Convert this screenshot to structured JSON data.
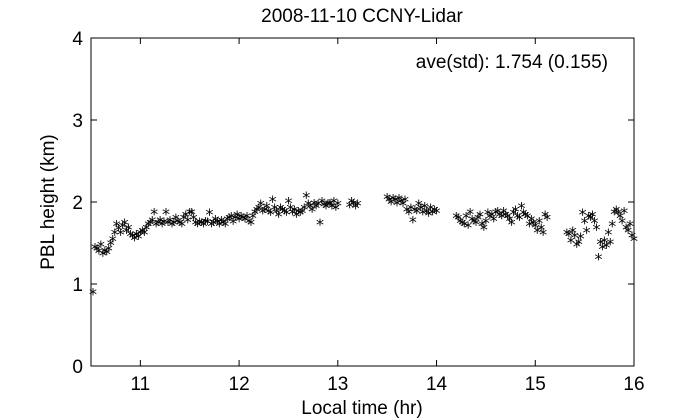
{
  "chart_data": {
    "type": "scatter",
    "title": "2008-11-10 CCNY-Lidar",
    "xlabel": "Local time (hr)",
    "ylabel": "PBL height (km)",
    "xlim": [
      10.5,
      16
    ],
    "ylim": [
      0,
      4
    ],
    "x_ticks": [
      11,
      12,
      13,
      14,
      15,
      16
    ],
    "y_ticks": [
      0,
      1,
      2,
      3,
      4
    ],
    "x_tick_labels": [
      "11",
      "12",
      "13",
      "14",
      "15",
      "16"
    ],
    "y_tick_labels": [
      "0",
      "1",
      "2",
      "3",
      "4"
    ],
    "annotation": "ave(std): 1.754 (0.155)",
    "marker": "*",
    "grid": false,
    "series": [
      {
        "values": [
          [
            10.52,
            0.87
          ],
          [
            10.54,
            1.42
          ],
          [
            10.56,
            1.4
          ],
          [
            10.58,
            1.37
          ],
          [
            10.6,
            1.45
          ],
          [
            10.62,
            1.34
          ],
          [
            10.64,
            1.38
          ],
          [
            10.66,
            1.36
          ],
          [
            10.68,
            1.4
          ],
          [
            10.7,
            1.47
          ],
          [
            10.72,
            1.52
          ],
          [
            10.74,
            1.6
          ],
          [
            10.76,
            1.7
          ],
          [
            10.78,
            1.65
          ],
          [
            10.8,
            1.6
          ],
          [
            10.82,
            1.68
          ],
          [
            10.84,
            1.72
          ],
          [
            10.86,
            1.62
          ],
          [
            10.88,
            1.66
          ],
          [
            10.9,
            1.58
          ],
          [
            10.92,
            1.56
          ],
          [
            10.94,
            1.53
          ],
          [
            10.96,
            1.58
          ],
          [
            10.98,
            1.55
          ],
          [
            11.0,
            1.6
          ],
          [
            11.02,
            1.62
          ],
          [
            11.04,
            1.6
          ],
          [
            11.06,
            1.66
          ],
          [
            11.08,
            1.7
          ],
          [
            11.1,
            1.72
          ],
          [
            11.12,
            1.75
          ],
          [
            11.14,
            1.85
          ],
          [
            11.16,
            1.7
          ],
          [
            11.18,
            1.72
          ],
          [
            11.2,
            1.75
          ],
          [
            11.22,
            1.7
          ],
          [
            11.24,
            1.73
          ],
          [
            11.26,
            1.85
          ],
          [
            11.28,
            1.72
          ],
          [
            11.3,
            1.75
          ],
          [
            11.32,
            1.7
          ],
          [
            11.34,
            1.72
          ],
          [
            11.36,
            1.78
          ],
          [
            11.38,
            1.74
          ],
          [
            11.4,
            1.72
          ],
          [
            11.42,
            1.7
          ],
          [
            11.44,
            1.78
          ],
          [
            11.46,
            1.82
          ],
          [
            11.48,
            1.75
          ],
          [
            11.5,
            1.85
          ],
          [
            11.52,
            1.85
          ],
          [
            11.54,
            1.78
          ],
          [
            11.56,
            1.72
          ],
          [
            11.58,
            1.7
          ],
          [
            11.6,
            1.73
          ],
          [
            11.62,
            1.72
          ],
          [
            11.64,
            1.7
          ],
          [
            11.66,
            1.74
          ],
          [
            11.68,
            1.73
          ],
          [
            11.7,
            1.84
          ],
          [
            11.72,
            1.7
          ],
          [
            11.74,
            1.72
          ],
          [
            11.76,
            1.76
          ],
          [
            11.78,
            1.73
          ],
          [
            11.8,
            1.7
          ],
          [
            11.82,
            1.75
          ],
          [
            11.84,
            1.72
          ],
          [
            11.86,
            1.7
          ],
          [
            11.88,
            1.76
          ],
          [
            11.9,
            1.78
          ],
          [
            11.92,
            1.8
          ],
          [
            11.94,
            1.73
          ],
          [
            11.96,
            1.78
          ],
          [
            11.98,
            1.82
          ],
          [
            12.0,
            1.76
          ],
          [
            12.02,
            1.8
          ],
          [
            12.04,
            1.78
          ],
          [
            12.06,
            1.76
          ],
          [
            12.08,
            1.8
          ],
          [
            12.1,
            1.74
          ],
          [
            12.12,
            1.72
          ],
          [
            12.14,
            1.8
          ],
          [
            12.16,
            1.85
          ],
          [
            12.18,
            1.88
          ],
          [
            12.2,
            1.9
          ],
          [
            12.22,
            1.95
          ],
          [
            12.24,
            1.86
          ],
          [
            12.26,
            1.88
          ],
          [
            12.28,
            1.92
          ],
          [
            12.3,
            1.86
          ],
          [
            12.32,
            1.84
          ],
          [
            12.34,
            2.0
          ],
          [
            12.36,
            1.9
          ],
          [
            12.38,
            1.86
          ],
          [
            12.4,
            1.82
          ],
          [
            12.42,
            1.9
          ],
          [
            12.44,
            1.88
          ],
          [
            12.46,
            1.86
          ],
          [
            12.48,
            1.84
          ],
          [
            12.5,
            1.98
          ],
          [
            12.52,
            1.9
          ],
          [
            12.54,
            1.85
          ],
          [
            12.56,
            1.88
          ],
          [
            12.58,
            1.82
          ],
          [
            12.6,
            1.86
          ],
          [
            12.62,
            1.84
          ],
          [
            12.64,
            1.86
          ],
          [
            12.66,
            1.9
          ],
          [
            12.68,
            2.05
          ],
          [
            12.7,
            1.95
          ],
          [
            12.72,
            1.92
          ],
          [
            12.74,
            1.88
          ],
          [
            12.76,
            1.96
          ],
          [
            12.78,
            1.92
          ],
          [
            12.8,
            1.95
          ],
          [
            12.82,
            1.72
          ],
          [
            12.84,
            1.98
          ],
          [
            12.86,
            1.94
          ],
          [
            12.88,
            1.92
          ],
          [
            12.9,
            1.96
          ],
          [
            12.92,
            1.96
          ],
          [
            12.94,
            1.92
          ],
          [
            12.96,
            1.98
          ],
          [
            12.98,
            1.9
          ],
          [
            13.0,
            1.95
          ],
          [
            13.12,
            1.93
          ],
          [
            13.14,
            1.98
          ],
          [
            13.16,
            1.96
          ],
          [
            13.18,
            1.92
          ],
          [
            13.2,
            1.95
          ],
          [
            13.5,
            2.03
          ],
          [
            13.52,
            2.0
          ],
          [
            13.54,
            1.97
          ],
          [
            13.56,
            2.02
          ],
          [
            13.58,
            2.0
          ],
          [
            13.6,
            1.96
          ],
          [
            13.62,
            2.02
          ],
          [
            13.64,
            1.98
          ],
          [
            13.66,
            1.95
          ],
          [
            13.68,
            2.0
          ],
          [
            13.7,
            1.88
          ],
          [
            13.72,
            1.85
          ],
          [
            13.74,
            1.9
          ],
          [
            13.76,
            1.75
          ],
          [
            13.78,
            1.88
          ],
          [
            13.8,
            1.86
          ],
          [
            13.82,
            1.95
          ],
          [
            13.84,
            1.9
          ],
          [
            13.86,
            1.85
          ],
          [
            13.88,
            1.92
          ],
          [
            13.9,
            1.86
          ],
          [
            13.92,
            1.83
          ],
          [
            13.94,
            1.9
          ],
          [
            13.96,
            1.85
          ],
          [
            13.98,
            1.88
          ],
          [
            14.0,
            1.86
          ],
          [
            14.2,
            1.8
          ],
          [
            14.22,
            1.78
          ],
          [
            14.24,
            1.74
          ],
          [
            14.26,
            1.72
          ],
          [
            14.28,
            1.7
          ],
          [
            14.3,
            1.8
          ],
          [
            14.32,
            1.68
          ],
          [
            14.34,
            1.85
          ],
          [
            14.36,
            1.76
          ],
          [
            14.38,
            1.74
          ],
          [
            14.4,
            1.72
          ],
          [
            14.42,
            1.78
          ],
          [
            14.44,
            1.82
          ],
          [
            14.46,
            1.7
          ],
          [
            14.48,
            1.66
          ],
          [
            14.5,
            1.74
          ],
          [
            14.52,
            1.84
          ],
          [
            14.54,
            1.8
          ],
          [
            14.56,
            1.82
          ],
          [
            14.58,
            1.76
          ],
          [
            14.6,
            1.85
          ],
          [
            14.62,
            1.86
          ],
          [
            14.64,
            1.82
          ],
          [
            14.66,
            1.8
          ],
          [
            14.68,
            1.86
          ],
          [
            14.7,
            1.82
          ],
          [
            14.72,
            1.8
          ],
          [
            14.74,
            1.76
          ],
          [
            14.76,
            1.72
          ],
          [
            14.78,
            1.84
          ],
          [
            14.8,
            1.88
          ],
          [
            14.82,
            1.8
          ],
          [
            14.84,
            1.78
          ],
          [
            14.86,
            1.92
          ],
          [
            14.88,
            1.84
          ],
          [
            14.9,
            1.82
          ],
          [
            14.92,
            1.8
          ],
          [
            14.94,
            1.7
          ],
          [
            14.96,
            1.76
          ],
          [
            14.98,
            1.72
          ],
          [
            15.0,
            1.68
          ],
          [
            15.02,
            1.62
          ],
          [
            15.04,
            1.74
          ],
          [
            15.06,
            1.66
          ],
          [
            15.08,
            1.6
          ],
          [
            15.1,
            1.82
          ],
          [
            15.12,
            1.78
          ],
          [
            15.32,
            1.6
          ],
          [
            15.34,
            1.58
          ],
          [
            15.36,
            1.5
          ],
          [
            15.38,
            1.62
          ],
          [
            15.4,
            1.56
          ],
          [
            15.42,
            1.45
          ],
          [
            15.44,
            1.48
          ],
          [
            15.46,
            1.55
          ],
          [
            15.48,
            1.84
          ],
          [
            15.5,
            1.74
          ],
          [
            15.52,
            1.62
          ],
          [
            15.54,
            1.8
          ],
          [
            15.56,
            1.78
          ],
          [
            15.58,
            1.82
          ],
          [
            15.6,
            1.74
          ],
          [
            15.62,
            1.66
          ],
          [
            15.64,
            1.3
          ],
          [
            15.66,
            1.48
          ],
          [
            15.68,
            1.42
          ],
          [
            15.7,
            1.5
          ],
          [
            15.72,
            1.44
          ],
          [
            15.74,
            1.6
          ],
          [
            15.76,
            1.48
          ],
          [
            15.78,
            1.7
          ],
          [
            15.8,
            1.85
          ],
          [
            15.82,
            1.88
          ],
          [
            15.84,
            1.84
          ],
          [
            15.86,
            1.8
          ],
          [
            15.88,
            1.74
          ],
          [
            15.9,
            1.86
          ],
          [
            15.92,
            1.66
          ],
          [
            15.94,
            1.62
          ],
          [
            15.96,
            1.7
          ],
          [
            15.98,
            1.56
          ],
          [
            16.0,
            1.52
          ]
        ]
      }
    ]
  }
}
